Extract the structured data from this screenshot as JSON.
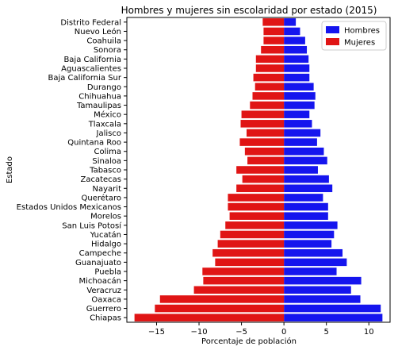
{
  "chart_data": {
    "type": "bar",
    "orientation": "horizontal",
    "title": "Hombres y mujeres sin escolaridad por estado (2015)",
    "xlabel": "Porcentaje de población",
    "ylabel": "Estado",
    "xlim": [
      -18.5,
      12.5
    ],
    "xticks": [
      -15,
      -10,
      -5,
      0,
      5,
      10
    ],
    "grid": false,
    "legend": "top-right",
    "categories": [
      "Distrito Federal",
      "Nuevo León",
      "Coahuila",
      "Sonora",
      "Baja California",
      "Aguascalientes",
      "Baja California Sur",
      "Durango",
      "Chihuahua",
      "Tamaulipas",
      "México",
      "Tlaxcala",
      "Jalisco",
      "Quintana Roo",
      "Colima",
      "Sinaloa",
      "Tabasco",
      "Zacatecas",
      "Nayarit",
      "Querétaro",
      "Estados Unidos Mexicanos",
      "Morelos",
      "San Luis Potosí",
      "Yucatán",
      "Hidalgo",
      "Campeche",
      "Guanajuato",
      "Puebla",
      "Michoacán",
      "Veracruz",
      "Oaxaca",
      "Guerrero",
      "Chiapas"
    ],
    "series": [
      {
        "name": "Hombres",
        "color": "#1515ee",
        "values": [
          1.4,
          1.9,
          2.5,
          2.7,
          2.9,
          3.0,
          3.0,
          3.5,
          3.7,
          3.6,
          3.0,
          3.3,
          4.3,
          3.9,
          4.7,
          5.1,
          4.0,
          5.3,
          5.7,
          4.6,
          5.2,
          5.2,
          6.3,
          5.9,
          5.6,
          6.9,
          7.4,
          6.2,
          9.1,
          7.9,
          9.0,
          11.4,
          11.6
        ]
      },
      {
        "name": "Mujeres",
        "color": "#e01515",
        "values": [
          -2.5,
          -2.4,
          -2.4,
          -2.7,
          -3.3,
          -3.3,
          -3.6,
          -3.4,
          -3.7,
          -4.0,
          -5.0,
          -5.1,
          -4.4,
          -5.2,
          -4.6,
          -4.3,
          -5.6,
          -4.9,
          -5.6,
          -6.6,
          -6.6,
          -6.4,
          -6.9,
          -7.5,
          -7.8,
          -8.4,
          -8.1,
          -9.6,
          -9.5,
          -10.6,
          -14.6,
          -15.2,
          -17.6
        ]
      }
    ]
  }
}
